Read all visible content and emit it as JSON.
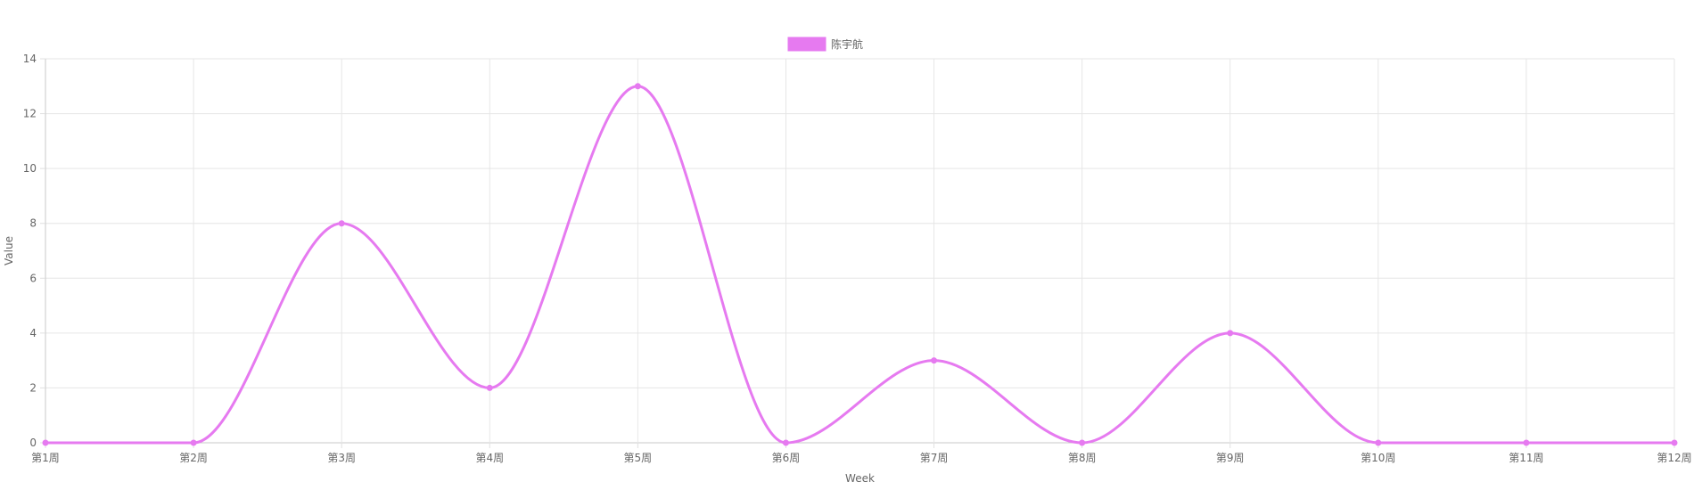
{
  "chart_data": {
    "type": "line",
    "categories": [
      "第1周",
      "第2周",
      "第3周",
      "第4周",
      "第5周",
      "第6周",
      "第7周",
      "第8周",
      "第9周",
      "第10周",
      "第11周",
      "第12周"
    ],
    "series": [
      {
        "name": "陈宇航",
        "values": [
          0,
          0,
          8,
          2,
          13,
          0,
          3,
          0,
          4,
          0,
          0,
          0
        ],
        "color": "#e67af0"
      }
    ],
    "xlabel": "Week",
    "ylabel": "Value",
    "ylim": [
      0,
      14
    ],
    "yticks": [
      0,
      2,
      4,
      6,
      8,
      10,
      12,
      14
    ],
    "grid": true,
    "legend_position": "top-center",
    "smooth": true
  }
}
